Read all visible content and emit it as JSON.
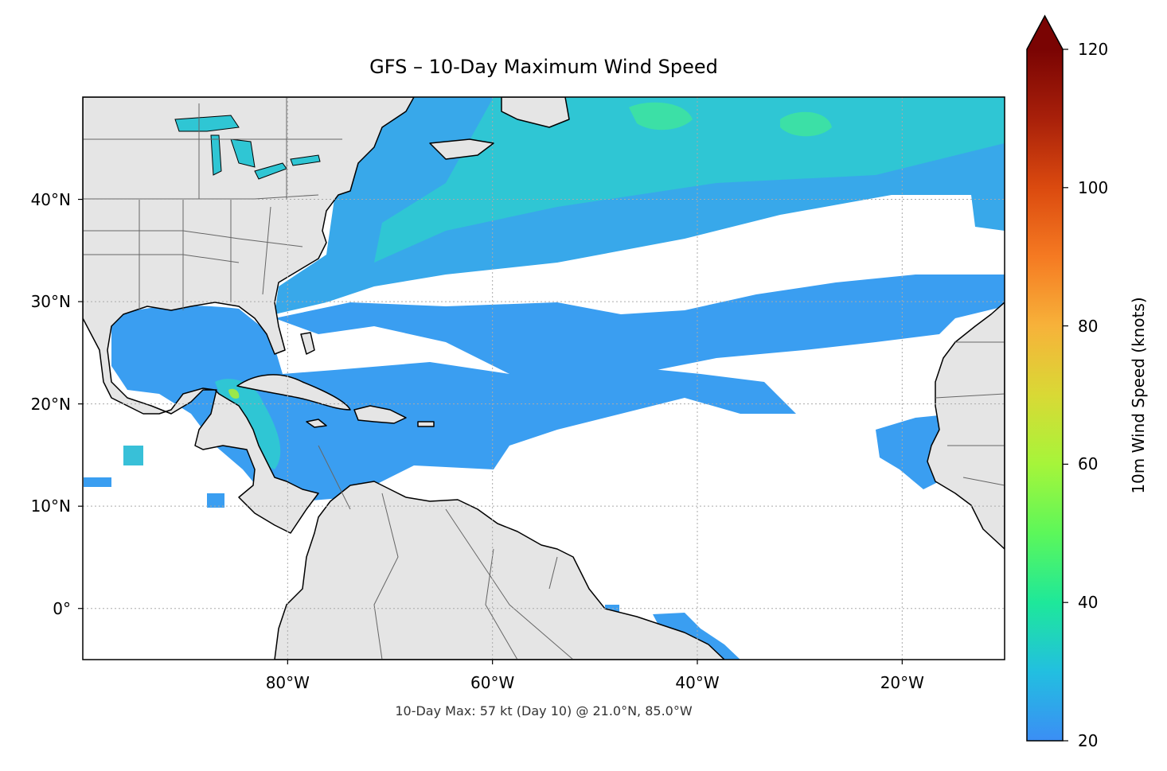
{
  "title": "GFS – 10-Day Maximum Wind Speed",
  "footnote": "10-Day Max: 57 kt (Day 10) @ 21.0°N, 85.0°W",
  "map": {
    "projection": "PlateCarree",
    "extent": {
      "lon_min": -100,
      "lon_max": -10,
      "lat_min": -5,
      "lat_max": 50
    },
    "lat_ticks": [
      {
        "value": 40,
        "label": "40°N"
      },
      {
        "value": 30,
        "label": "30°N"
      },
      {
        "value": 20,
        "label": "20°N"
      },
      {
        "value": 10,
        "label": "10°N"
      },
      {
        "value": 0,
        "label": "0°"
      }
    ],
    "lon_ticks": [
      {
        "value": -80,
        "label": "80°W"
      },
      {
        "value": -60,
        "label": "60°W"
      },
      {
        "value": -40,
        "label": "40°W"
      },
      {
        "value": -20,
        "label": "20°W"
      }
    ],
    "gridlines": true,
    "land_color": "#e5e5e5",
    "coast_color": "#000000",
    "border_color": "#666666"
  },
  "colorbar": {
    "label": "10m Wind Speed (knots)",
    "min": 20,
    "max": 120,
    "extend": "max",
    "colormap": "turbo",
    "ticks": [
      {
        "value": 20,
        "label": "20"
      },
      {
        "value": 40,
        "label": "40"
      },
      {
        "value": 60,
        "label": "60"
      },
      {
        "value": 80,
        "label": "80"
      },
      {
        "value": 100,
        "label": "100"
      },
      {
        "value": 120,
        "label": "120"
      }
    ],
    "stops": [
      "#3b8ef5",
      "#22bfe0",
      "#1ee89a",
      "#5cf75a",
      "#a6f53a",
      "#d9d935",
      "#f7b23a",
      "#f57a22",
      "#db4a0f",
      "#a8200a",
      "#7a0403"
    ]
  },
  "max_wind": {
    "value_kt": 57,
    "day": 10,
    "lat": 21.0,
    "lon": -85.0
  }
}
